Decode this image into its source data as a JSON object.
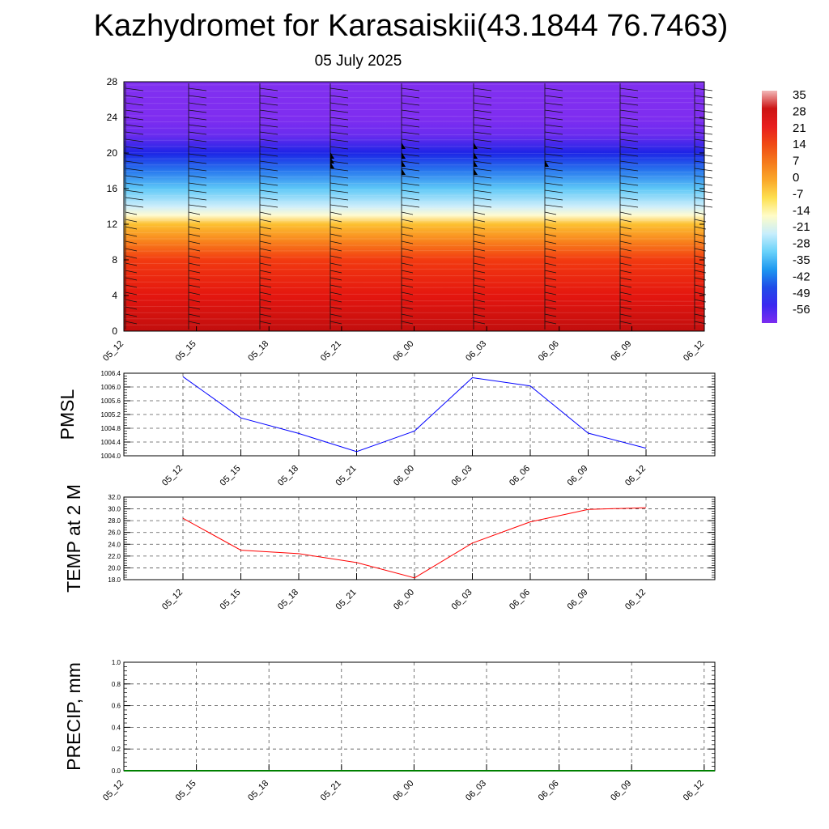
{
  "header": {
    "title": "Kazhydromet for Karasaiskii(43.1844 76.7463)",
    "date": "05 July 2025"
  },
  "chart_data": [
    {
      "type": "heatmap",
      "panel": "vertical-profile",
      "variable_note": "filled contours with wind barbs",
      "x_ticks": [
        "05_12",
        "05_15",
        "05_18",
        "05_21",
        "06_00",
        "06_03",
        "06_06",
        "06_09",
        "06_12"
      ],
      "y_ticks": [
        0,
        4,
        8,
        12,
        16,
        20,
        24,
        28
      ],
      "ylim": [
        0,
        28
      ],
      "colorbar": {
        "labels": [
          "35",
          "28",
          "21",
          "14",
          "7",
          "0",
          "-7",
          "-14",
          "-21",
          "-28",
          "-35",
          "-42",
          "-49",
          "-56"
        ],
        "colors": [
          "#f2b8b8",
          "#cc1414",
          "#e81e1e",
          "#f04a14",
          "#f57a1c",
          "#faa82a",
          "#fde050",
          "#fffcc8",
          "#c8eefc",
          "#6ad2fa",
          "#1e98f0",
          "#1f4ce8",
          "#3a28f0",
          "#7c2cf0"
        ]
      },
      "vertical_bands": [
        {
          "y": 0,
          "color": "#c20e0e"
        },
        {
          "y": 4,
          "color": "#e4160f"
        },
        {
          "y": 8,
          "color": "#f23a10"
        },
        {
          "y": 10,
          "color": "#f8801c"
        },
        {
          "y": 12,
          "color": "#fcc030"
        },
        {
          "y": 13,
          "color": "#fffbd0"
        },
        {
          "y": 14,
          "color": "#cdeefb"
        },
        {
          "y": 16,
          "color": "#5ec8f7"
        },
        {
          "y": 18,
          "color": "#2878ee"
        },
        {
          "y": 20,
          "color": "#1c24e6"
        },
        {
          "y": 22,
          "color": "#6a2cef"
        },
        {
          "y": 24,
          "color": "#7f2df0"
        },
        {
          "y": 28,
          "color": "#8030f0"
        }
      ]
    },
    {
      "type": "line",
      "panel": "pmsl",
      "ylabel": "PMSL",
      "color": "#0000ff",
      "categories": [
        "05_12",
        "05_15",
        "05_18",
        "05_21",
        "06_00",
        "06_03",
        "06_06",
        "06_09",
        "06_12"
      ],
      "y_ticks": [
        "1004.0",
        "1004.4",
        "1004.8",
        "1005.2",
        "1005.6",
        "1006.0",
        "1006.4"
      ],
      "ylim": [
        1004.0,
        1006.4
      ],
      "values": [
        1006.3,
        1005.1,
        1004.65,
        1004.12,
        1004.72,
        1006.27,
        1006.03,
        1004.66,
        1004.22
      ]
    },
    {
      "type": "line",
      "panel": "temp-2m",
      "ylabel": "TEMP at 2 M",
      "color": "#ff0000",
      "categories": [
        "05_12",
        "05_15",
        "05_18",
        "05_21",
        "06_00",
        "06_03",
        "06_06",
        "06_09",
        "06_12"
      ],
      "y_ticks": [
        "18.0",
        "20.0",
        "22.0",
        "24.0",
        "26.0",
        "28.0",
        "30.0",
        "32.0"
      ],
      "ylim": [
        18.0,
        32.0
      ],
      "values": [
        28.4,
        23.0,
        22.4,
        20.9,
        18.3,
        24.2,
        27.8,
        29.9,
        30.2
      ]
    },
    {
      "type": "line",
      "panel": "precip",
      "ylabel": "PRECIP, mm",
      "color": "#008000",
      "categories": [
        "05_12",
        "05_15",
        "05_18",
        "05_21",
        "06_00",
        "06_03",
        "06_06",
        "06_09",
        "06_12"
      ],
      "y_ticks": [
        "0.0",
        "0.2",
        "0.4",
        "0.6",
        "0.8",
        "1.0"
      ],
      "ylim": [
        0.0,
        1.0
      ],
      "values": [
        0,
        0,
        0,
        0,
        0,
        0,
        0,
        0,
        0
      ]
    }
  ]
}
